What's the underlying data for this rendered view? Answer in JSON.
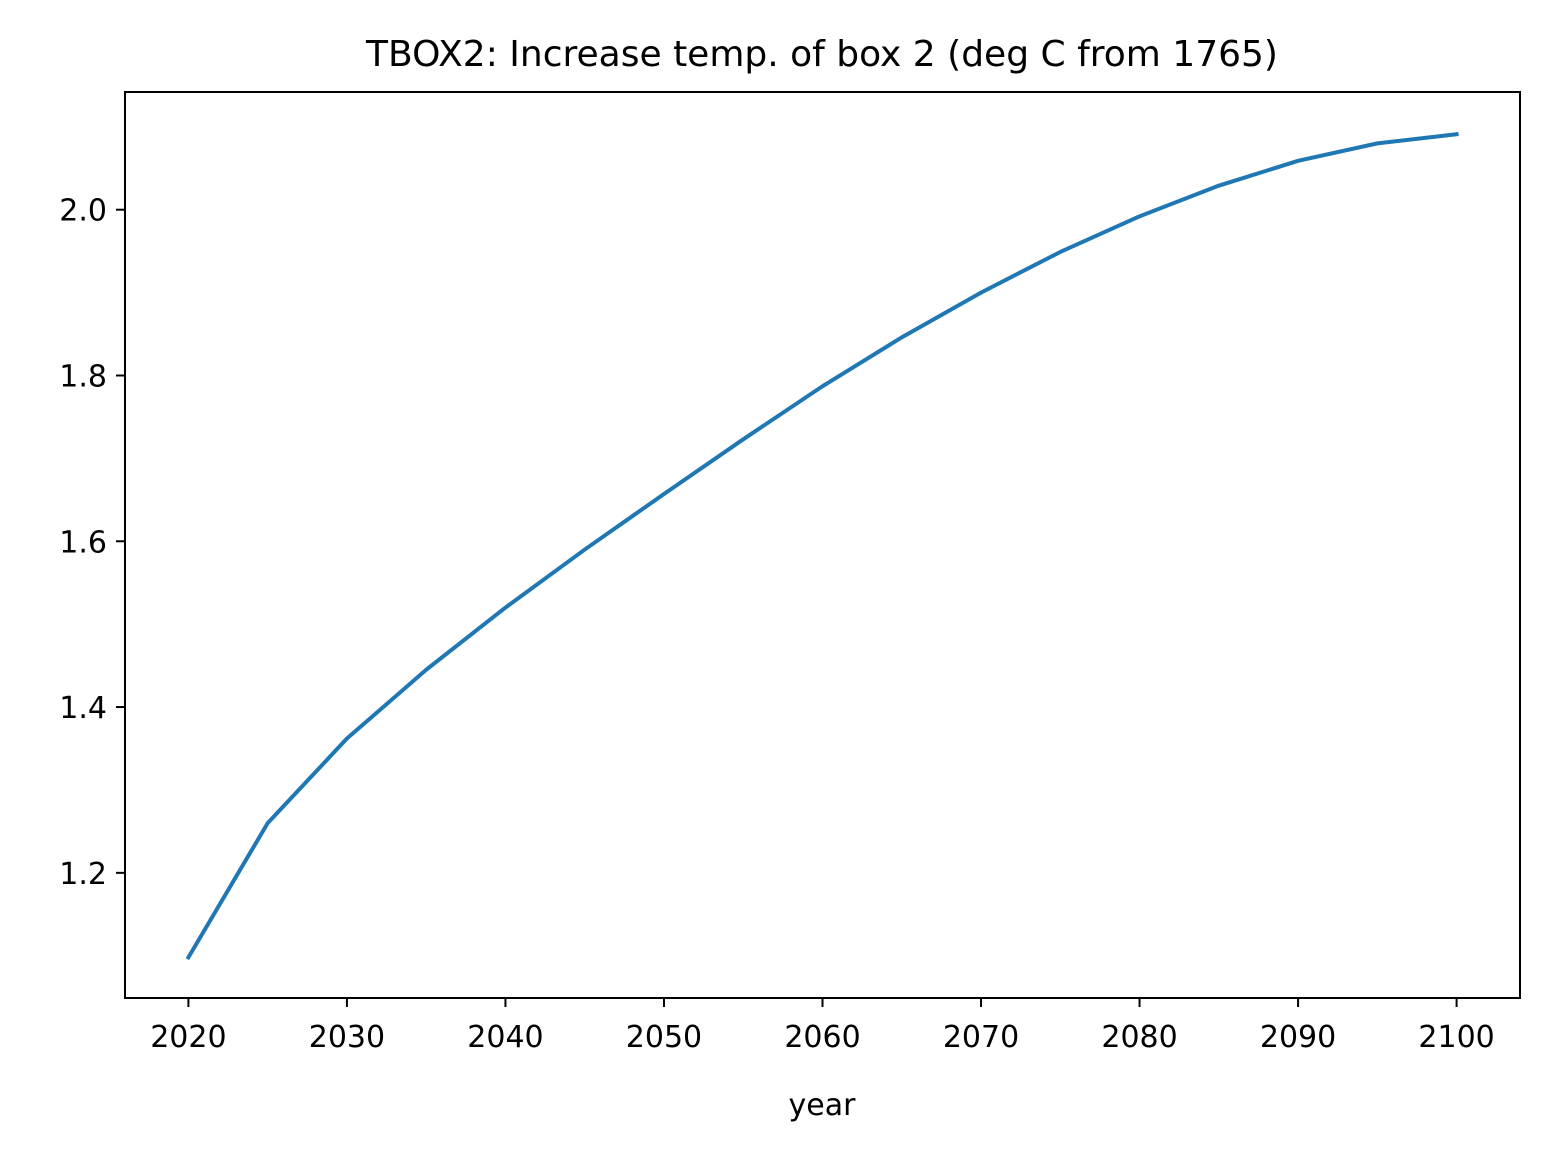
{
  "chart_data": {
    "type": "line",
    "title": "TBOX2: Increase temp. of box 2 (deg C from 1765)",
    "xlabel": "year",
    "ylabel": "",
    "xlim": [
      2016,
      2104
    ],
    "ylim": [
      1.049,
      2.142
    ],
    "x_ticks": [
      2020,
      2030,
      2040,
      2050,
      2060,
      2070,
      2080,
      2090,
      2100
    ],
    "x_tick_labels": [
      "2020",
      "2030",
      "2040",
      "2050",
      "2060",
      "2070",
      "2080",
      "2090",
      "2100"
    ],
    "y_ticks": [
      1.2,
      1.4,
      1.6,
      1.8,
      2.0
    ],
    "y_tick_labels": [
      "1.2",
      "1.4",
      "1.6",
      "1.8",
      "2.0"
    ],
    "grid": false,
    "legend": "none",
    "series": [
      {
        "color": "#1f77b4",
        "x": [
          2020,
          2025,
          2030,
          2035,
          2040,
          2045,
          2050,
          2055,
          2060,
          2065,
          2070,
          2075,
          2080,
          2085,
          2090,
          2095,
          2100
        ],
        "values": [
          1.098,
          1.26,
          1.362,
          1.445,
          1.52,
          1.59,
          1.657,
          1.723,
          1.787,
          1.846,
          1.9,
          1.949,
          1.992,
          2.029,
          2.059,
          2.08,
          2.091
        ]
      }
    ]
  }
}
